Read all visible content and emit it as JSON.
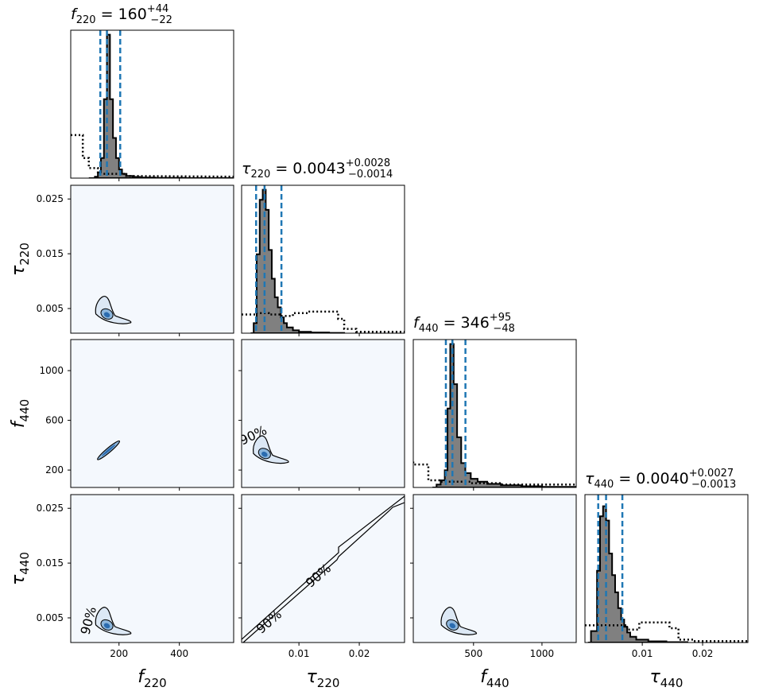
{
  "chart_data": {
    "type": "corner",
    "parameters": [
      {
        "key": "f220",
        "label_base": "f",
        "label_sub": "220",
        "lim": [
          40,
          580
        ],
        "ticks": [
          200,
          400
        ],
        "tick_labels": [
          "200",
          "400"
        ],
        "median": 160,
        "lo": 138,
        "hi": 204,
        "title": {
          "base": "f",
          "sub": "220",
          "text": " = 160",
          "plus": "+44",
          "minus": "−22"
        }
      },
      {
        "key": "tau220",
        "label_base": "τ",
        "label_sub": "220",
        "lim": [
          0.0005,
          0.0275
        ],
        "ticks": [
          0.005,
          0.015,
          0.025
        ],
        "tick_labels": [
          "0.005",
          "0.015",
          "0.025"
        ],
        "ticks_x": [
          0.01,
          0.02
        ],
        "tick_labels_x": [
          "0.01",
          "0.02"
        ],
        "median": 0.0043,
        "lo": 0.0029,
        "hi": 0.0071,
        "title": {
          "base": "τ",
          "sub": "220",
          "text": " = 0.0043",
          "plus": "+0.0028",
          "minus": "−0.0014"
        }
      },
      {
        "key": "f440",
        "label_base": "f",
        "label_sub": "440",
        "lim": [
          60,
          1250
        ],
        "ticks": [
          200,
          600,
          1000
        ],
        "tick_labels": [
          "200",
          "600",
          "1000"
        ],
        "ticks_x": [
          500,
          1000
        ],
        "tick_labels_x": [
          "500",
          "1000"
        ],
        "median": 346,
        "lo": 298,
        "hi": 441,
        "title": {
          "base": "f",
          "sub": "440",
          "text": " = 346",
          "plus": "+95",
          "minus": "−48"
        }
      },
      {
        "key": "tau440",
        "label_base": "τ",
        "label_sub": "440",
        "lim": [
          0.0005,
          0.0275
        ],
        "ticks": [
          0.005,
          0.015,
          0.025
        ],
        "tick_labels": [
          "0.005",
          "0.015",
          "0.025"
        ],
        "ticks_x": [
          0.01,
          0.02
        ],
        "tick_labels_x": [
          "0.01",
          "0.02"
        ],
        "median": 0.004,
        "lo": 0.0027,
        "hi": 0.0067,
        "title": {
          "base": "τ",
          "sub": "440",
          "text": " = 0.0040",
          "plus": "+0.0027",
          "minus": "−0.0013"
        }
      }
    ],
    "diagonal": [
      {
        "posterior_hist": [
          [
            100,
            0
          ],
          [
            120,
            0.01
          ],
          [
            130,
            0.04
          ],
          [
            140,
            0.14
          ],
          [
            150,
            0.55
          ],
          [
            160,
            1.0
          ],
          [
            170,
            0.55
          ],
          [
            180,
            0.28
          ],
          [
            190,
            0.14
          ],
          [
            200,
            0.06
          ],
          [
            210,
            0.03
          ],
          [
            225,
            0.015
          ],
          [
            245,
            0.008
          ],
          [
            270,
            0.004
          ],
          [
            320,
            0.002
          ],
          [
            420,
            0.001
          ],
          [
            580,
            0
          ]
        ],
        "prior_hist": [
          [
            40,
            0.3
          ],
          [
            80,
            0.3
          ],
          [
            80,
            0.14
          ],
          [
            100,
            0.14
          ],
          [
            100,
            0.07
          ],
          [
            130,
            0.07
          ],
          [
            130,
            0.03
          ],
          [
            220,
            0.03
          ],
          [
            220,
            0.015
          ],
          [
            580,
            0.01
          ]
        ]
      },
      {
        "posterior_hist": [
          [
            0.002,
            0
          ],
          [
            0.0025,
            0.07
          ],
          [
            0.003,
            0.55
          ],
          [
            0.0035,
            0.93
          ],
          [
            0.004,
            1.0
          ],
          [
            0.0045,
            0.86
          ],
          [
            0.005,
            0.58
          ],
          [
            0.0055,
            0.38
          ],
          [
            0.006,
            0.25
          ],
          [
            0.0065,
            0.18
          ],
          [
            0.007,
            0.11
          ],
          [
            0.0075,
            0.07
          ],
          [
            0.008,
            0.04
          ],
          [
            0.009,
            0.02
          ],
          [
            0.01,
            0.01
          ],
          [
            0.012,
            0.005
          ],
          [
            0.015,
            0.002
          ],
          [
            0.0175,
            0
          ]
        ],
        "prior_hist": [
          [
            0.0005,
            0.13
          ],
          [
            0.003,
            0.13
          ],
          [
            0.003,
            0.14
          ],
          [
            0.005,
            0.14
          ],
          [
            0.005,
            0.13
          ],
          [
            0.007,
            0.13
          ],
          [
            0.007,
            0.12
          ],
          [
            0.009,
            0.12
          ],
          [
            0.009,
            0.14
          ],
          [
            0.0115,
            0.14
          ],
          [
            0.0115,
            0.15
          ],
          [
            0.0165,
            0.15
          ],
          [
            0.0165,
            0.1
          ],
          [
            0.0175,
            0.1
          ],
          [
            0.0175,
            0.03
          ],
          [
            0.0195,
            0.03
          ],
          [
            0.0195,
            0.01
          ],
          [
            0.0275,
            0.01
          ]
        ]
      },
      {
        "posterior_hist": [
          [
            200,
            0
          ],
          [
            230,
            0.02
          ],
          [
            260,
            0.05
          ],
          [
            290,
            0.12
          ],
          [
            310,
            0.55
          ],
          [
            330,
            1.0
          ],
          [
            355,
            0.72
          ],
          [
            380,
            0.35
          ],
          [
            410,
            0.17
          ],
          [
            440,
            0.1
          ],
          [
            480,
            0.06
          ],
          [
            530,
            0.04
          ],
          [
            600,
            0.025
          ],
          [
            700,
            0.015
          ],
          [
            850,
            0.008
          ],
          [
            1000,
            0.004
          ],
          [
            1250,
            0
          ]
        ],
        "prior_hist": [
          [
            60,
            0.18
          ],
          [
            60,
            0.16
          ],
          [
            170,
            0.16
          ],
          [
            170,
            0.05
          ],
          [
            260,
            0.05
          ],
          [
            260,
            0.04
          ],
          [
            480,
            0.04
          ],
          [
            480,
            0.03
          ],
          [
            700,
            0.03
          ],
          [
            700,
            0.02
          ],
          [
            1250,
            0.02
          ]
        ]
      },
      {
        "posterior_hist": [
          [
            0.001,
            0
          ],
          [
            0.0015,
            0.08
          ],
          [
            0.0025,
            0.5
          ],
          [
            0.003,
            0.88
          ],
          [
            0.0035,
            0.95
          ],
          [
            0.004,
            0.85
          ],
          [
            0.0045,
            0.62
          ],
          [
            0.005,
            0.47
          ],
          [
            0.0055,
            0.35
          ],
          [
            0.006,
            0.24
          ],
          [
            0.0065,
            0.16
          ],
          [
            0.007,
            0.11
          ],
          [
            0.0075,
            0.07
          ],
          [
            0.008,
            0.04
          ],
          [
            0.009,
            0.02
          ],
          [
            0.011,
            0.008
          ],
          [
            0.014,
            0.003
          ],
          [
            0.0175,
            0
          ]
        ],
        "prior_hist": [
          [
            0.0005,
            0.12
          ],
          [
            0.0075,
            0.12
          ],
          [
            0.0075,
            0.09
          ],
          [
            0.0095,
            0.09
          ],
          [
            0.0095,
            0.14
          ],
          [
            0.0145,
            0.14
          ],
          [
            0.0145,
            0.1
          ],
          [
            0.016,
            0.1
          ],
          [
            0.016,
            0.02
          ],
          [
            0.0185,
            0.02
          ],
          [
            0.0185,
            0.01
          ],
          [
            0.0275,
            0.01
          ]
        ]
      }
    ],
    "pairs": [
      {
        "row": 1,
        "col": 0,
        "center": [
          160,
          0.0043
        ],
        "contour_labels": []
      },
      {
        "row": 2,
        "col": 0,
        "center": [
          160,
          346
        ],
        "contour_labels": []
      },
      {
        "row": 2,
        "col": 1,
        "center": [
          0.0043,
          346
        ],
        "contour_labels": [
          "90%"
        ]
      },
      {
        "row": 3,
        "col": 0,
        "center": [
          160,
          0.004
        ],
        "contour_labels": [
          "90%"
        ]
      },
      {
        "row": 3,
        "col": 1,
        "center": [
          0.0043,
          0.004
        ],
        "contour_labels": [
          "90%",
          "90%"
        ]
      },
      {
        "row": 3,
        "col": 2,
        "center": [
          346,
          0.004
        ],
        "contour_labels": []
      }
    ],
    "colors": {
      "posterior_fill": "#808080",
      "posterior_line": "#000000",
      "quantile_line": "#1f77b4",
      "density_background": "#f4f8fd",
      "density_core": "#2b6cb0",
      "density_inner": "#8db6dc",
      "density_outer": "#dce8f5"
    }
  }
}
